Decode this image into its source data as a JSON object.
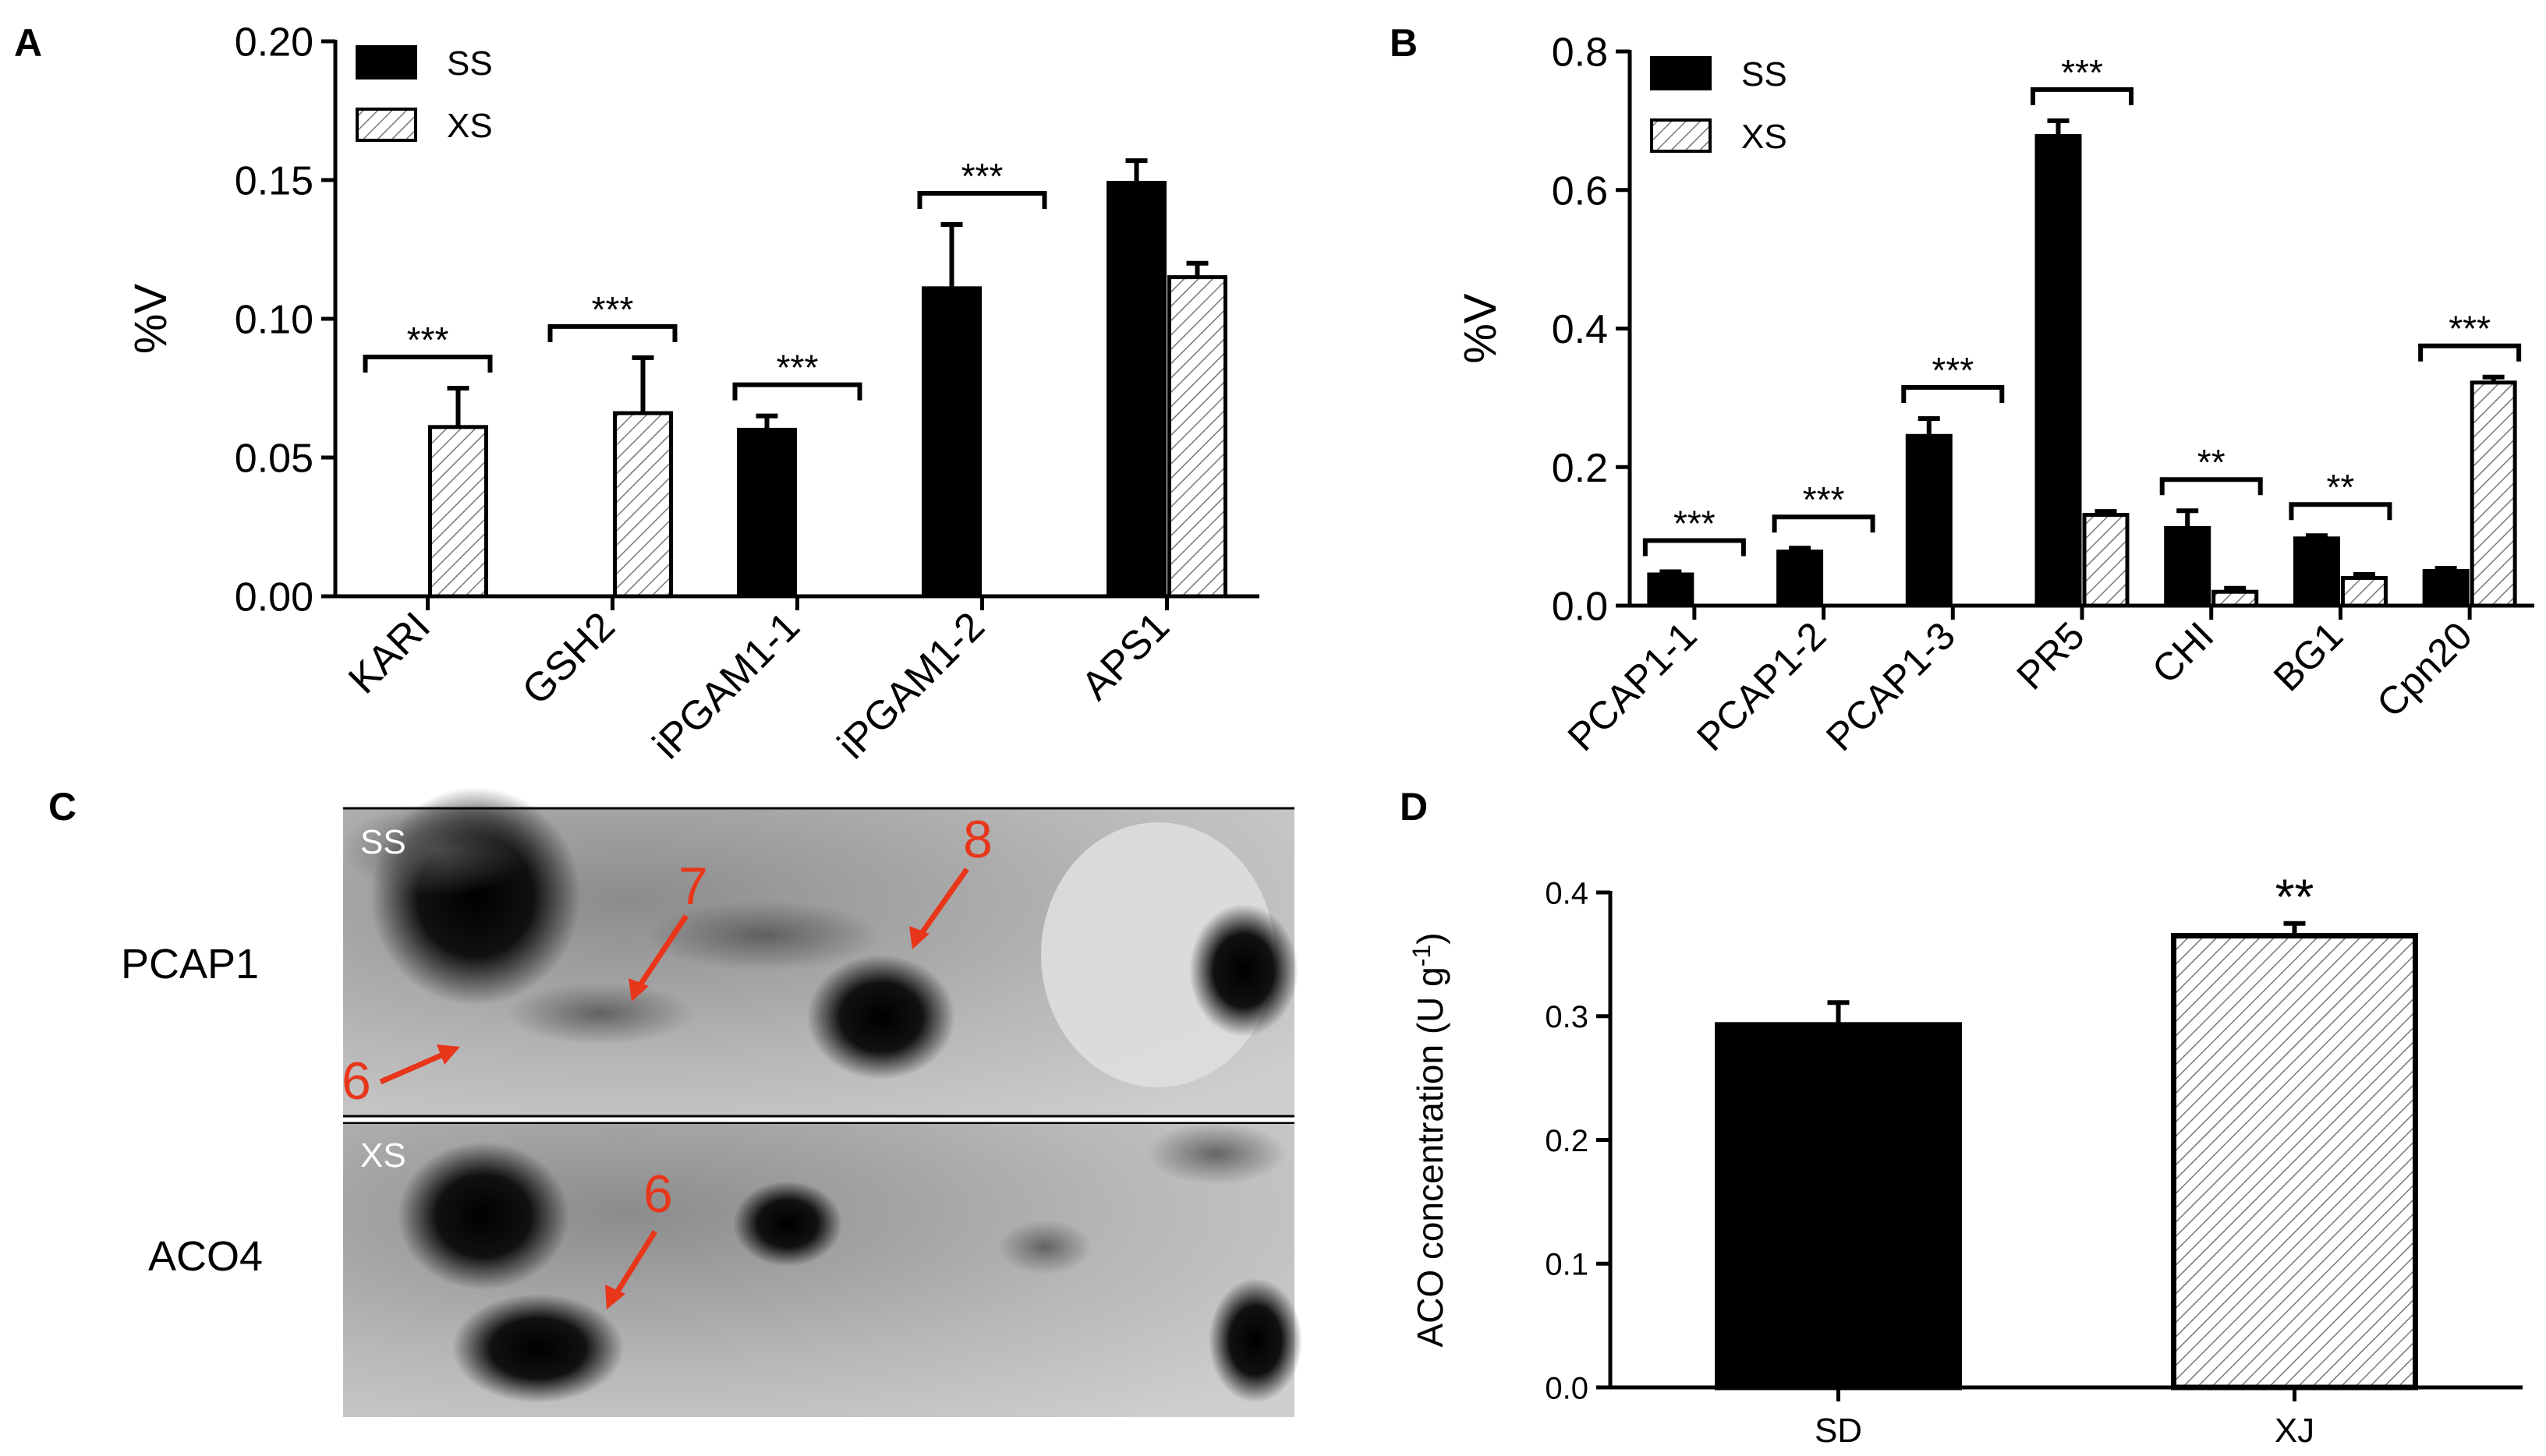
{
  "colors": {
    "ss": "#000000",
    "xs_fill": "#ffffff",
    "xs_hatch": "#777777",
    "annotation": "#e8361a"
  },
  "chart_data": [
    {
      "panel": "A",
      "type": "bar",
      "ylabel": "%V",
      "ylim": [
        0,
        0.2
      ],
      "yticks": [
        "0.00",
        "0.05",
        "0.10",
        "0.15",
        "0.20"
      ],
      "categories": [
        "KARI",
        "GSH2",
        "iPGAM1-1",
        "iPGAM1-2",
        "APS1"
      ],
      "legend": "top-left",
      "series": [
        {
          "name": "SS",
          "values": [
            0,
            0,
            0.06,
            0.111,
            0.149
          ],
          "errors": [
            0,
            0,
            0.005,
            0.023,
            0.008
          ]
        },
        {
          "name": "XS",
          "values": [
            0.061,
            0.066,
            0,
            0,
            0.115
          ],
          "errors": [
            0.014,
            0.02,
            0,
            0,
            0.005
          ]
        }
      ],
      "significance": [
        "***",
        "***",
        "***",
        "***",
        ""
      ]
    },
    {
      "panel": "B",
      "type": "bar",
      "ylabel": "%V",
      "ylim": [
        0,
        0.8
      ],
      "yticks": [
        "0.0",
        "0.2",
        "0.4",
        "0.6",
        "0.8"
      ],
      "categories": [
        "PCAP1-1",
        "PCAP1-2",
        "PCAP1-3",
        "PR5",
        "CHI",
        "BG1",
        "Cpn20"
      ],
      "legend": "top-left",
      "series": [
        {
          "name": "SS",
          "values": [
            0.045,
            0.078,
            0.245,
            0.678,
            0.112,
            0.097,
            0.05
          ],
          "errors": [
            0.004,
            0.005,
            0.025,
            0.022,
            0.025,
            0.004,
            0.004
          ]
        },
        {
          "name": "XS",
          "values": [
            0,
            0,
            0,
            0.131,
            0.02,
            0.04,
            0.322
          ],
          "errors": [
            0,
            0,
            0,
            0.005,
            0.005,
            0.005,
            0.008
          ]
        }
      ],
      "significance": [
        "***",
        "***",
        "***",
        "***",
        "**",
        "**",
        "***"
      ]
    },
    {
      "panel": "D",
      "type": "bar",
      "ylabel": "ACO concentration (U g",
      "ylabel_sup": "-1",
      "ylabel_close": ")",
      "ylim": [
        0,
        0.4
      ],
      "yticks": [
        "0.0",
        "0.1",
        "0.2",
        "0.3",
        "0.4"
      ],
      "categories": [
        "SD",
        "XJ"
      ],
      "values": [
        0.293,
        0.365
      ],
      "errors": [
        0.018,
        0.01
      ],
      "significance": [
        "",
        "**"
      ]
    }
  ],
  "gel": {
    "panel": "C",
    "rows": [
      {
        "tag": "SS",
        "protein": "PCAP1",
        "spots": [
          "6",
          "7",
          "8"
        ]
      },
      {
        "tag": "XS",
        "protein": "ACO4",
        "spots": [
          "6"
        ]
      }
    ]
  }
}
